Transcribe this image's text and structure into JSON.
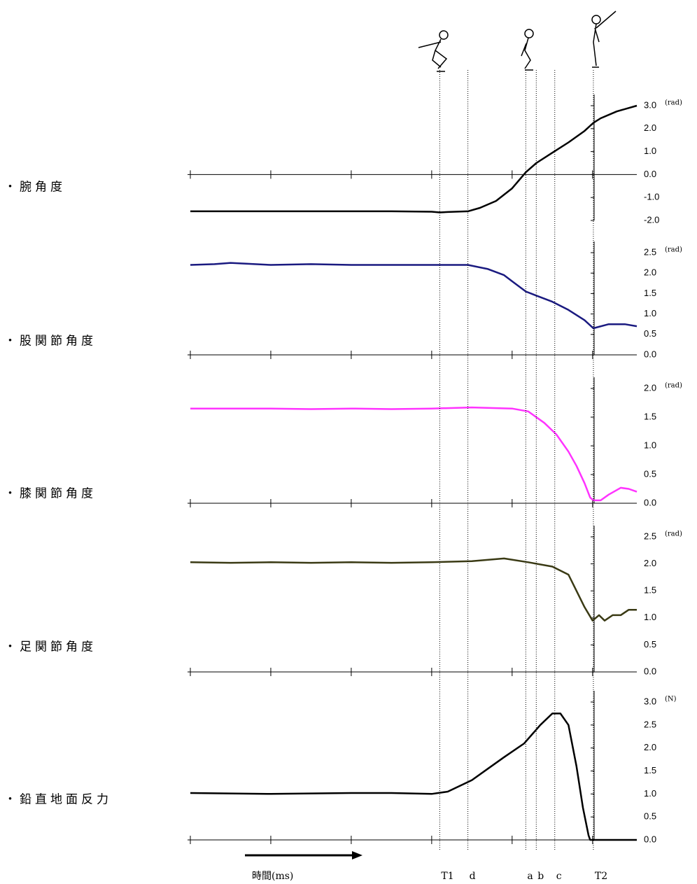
{
  "chart_data": [
    {
      "type": "line",
      "title": "・腕角度",
      "y_unit": "(rad)",
      "color": "#000000",
      "x": [
        0,
        1,
        2,
        2.5,
        3,
        3.1,
        3.2,
        3.45,
        3.6,
        3.8,
        4.0,
        4.17,
        4.3,
        4.5,
        4.7,
        4.9,
        5.01,
        5.1,
        5.3,
        5.55
      ],
      "values": [
        -1.6,
        -1.6,
        -1.6,
        -1.6,
        -1.62,
        -1.65,
        -1.63,
        -1.6,
        -1.45,
        -1.15,
        -0.6,
        0.1,
        0.5,
        0.95,
        1.4,
        1.9,
        2.25,
        2.45,
        2.75,
        3.0
      ],
      "xlim": [
        0,
        5.55
      ],
      "xticks": [
        0,
        1,
        2,
        3,
        4,
        5
      ],
      "ylim": [
        -2,
        3
      ],
      "yticks": [
        {
          "value": -2,
          "label": "-2.0"
        },
        {
          "value": -1,
          "label": "-1.0"
        },
        {
          "value": 0,
          "label": "0.0"
        },
        {
          "value": 1,
          "label": "1.0"
        },
        {
          "value": 2,
          "label": "2.0"
        },
        {
          "value": 3,
          "label": "3.0"
        }
      ]
    },
    {
      "type": "line",
      "title": "・股関節角度",
      "y_unit": "(rad)",
      "color": "#1a1a80",
      "x": [
        0,
        0.3,
        0.5,
        1,
        1.5,
        2,
        2.5,
        3,
        3.45,
        3.7,
        3.9,
        4.0,
        4.17,
        4.3,
        4.5,
        4.7,
        4.9,
        5.01,
        5.2,
        5.4,
        5.55
      ],
      "values": [
        2.2,
        2.22,
        2.25,
        2.2,
        2.22,
        2.2,
        2.2,
        2.2,
        2.2,
        2.1,
        1.95,
        1.8,
        1.55,
        1.45,
        1.3,
        1.1,
        0.85,
        0.65,
        0.75,
        0.75,
        0.7
      ],
      "xlim": [
        0,
        5.55
      ],
      "xticks": [
        0,
        1,
        2,
        3,
        4,
        5
      ],
      "ylim": [
        0,
        2.5
      ],
      "yticks": [
        {
          "value": 0,
          "label": "0.0"
        },
        0.5,
        {
          "value": 1,
          "label": "1.0"
        },
        1.5,
        {
          "value": 2,
          "label": "2.0"
        },
        2.5
      ]
    },
    {
      "type": "line",
      "title": "・膝関節角度",
      "y_unit": "(rad)",
      "color": "#ff33ff",
      "x": [
        0,
        0.5,
        1,
        1.5,
        2,
        2.5,
        3,
        3.5,
        4.0,
        4.2,
        4.4,
        4.55,
        4.7,
        4.8,
        4.9,
        4.97,
        5.01,
        5.1,
        5.2,
        5.35,
        5.45,
        5.55
      ],
      "values": [
        1.65,
        1.65,
        1.65,
        1.64,
        1.65,
        1.64,
        1.65,
        1.67,
        1.65,
        1.6,
        1.4,
        1.2,
        0.9,
        0.65,
        0.35,
        0.1,
        0.05,
        0.05,
        0.15,
        0.27,
        0.25,
        0.2
      ],
      "xlim": [
        0,
        5.55
      ],
      "xticks": [
        0,
        1,
        2,
        3,
        4,
        5
      ],
      "ylim": [
        0,
        2
      ],
      "yticks": [
        {
          "value": 0,
          "label": "0.0"
        },
        0.5,
        {
          "value": 1,
          "label": "1.0"
        },
        1.5,
        {
          "value": 2,
          "label": "2.0"
        }
      ]
    },
    {
      "type": "line",
      "title": "・足関節角度",
      "y_unit": "(rad)",
      "color": "#3a3a14",
      "x": [
        0,
        0.5,
        1,
        1.5,
        2,
        2.5,
        3,
        3.5,
        3.9,
        4.2,
        4.5,
        4.7,
        4.8,
        4.9,
        5.0,
        5.08,
        5.15,
        5.25,
        5.35,
        5.45,
        5.55
      ],
      "values": [
        2.03,
        2.02,
        2.03,
        2.02,
        2.03,
        2.02,
        2.03,
        2.05,
        2.1,
        2.03,
        1.95,
        1.8,
        1.5,
        1.2,
        0.95,
        1.05,
        0.95,
        1.05,
        1.05,
        1.15,
        1.15
      ],
      "xlim": [
        0,
        5.55
      ],
      "xticks": [
        0,
        1,
        2,
        3,
        4,
        5
      ],
      "ylim": [
        0,
        2.5
      ],
      "yticks": [
        {
          "value": 0,
          "label": "0.0"
        },
        0.5,
        {
          "value": 1,
          "label": "1.0"
        },
        1.5,
        {
          "value": 2,
          "label": "2.0"
        },
        2.5
      ]
    },
    {
      "type": "line",
      "title": "・鉛直地面反力",
      "y_unit": "(N)",
      "color": "#000000",
      "x": [
        0,
        1,
        2,
        2.5,
        3,
        3.2,
        3.5,
        3.7,
        3.9,
        4.15,
        4.35,
        4.5,
        4.6,
        4.7,
        4.8,
        4.88,
        4.95,
        4.97,
        5.2,
        5.55
      ],
      "values": [
        1.02,
        1.0,
        1.02,
        1.02,
        1.0,
        1.05,
        1.3,
        1.55,
        1.8,
        2.1,
        2.5,
        2.75,
        2.75,
        2.5,
        1.6,
        0.7,
        0.1,
        0,
        0,
        0
      ],
      "xlim": [
        0,
        5.55
      ],
      "xticks": [
        0,
        1,
        2,
        3,
        4,
        5
      ],
      "ylim": [
        0,
        3
      ],
      "yticks": [
        {
          "value": 0,
          "label": "0.0"
        },
        0.5,
        {
          "value": 1,
          "label": "1.0"
        },
        1.5,
        {
          "value": 2,
          "label": "2.0"
        },
        2.5,
        {
          "value": 3,
          "label": "3.0"
        }
      ]
    }
  ],
  "x_axis_label": "時間(ms)",
  "events": [
    {
      "label": "T1",
      "x": 3.1
    },
    {
      "label": "d",
      "x": 3.45
    },
    {
      "label": "a",
      "x": 4.17
    },
    {
      "label": "b",
      "x": 4.3
    },
    {
      "label": "c",
      "x": 4.53
    },
    {
      "label": "T2",
      "x": 5.01
    }
  ]
}
